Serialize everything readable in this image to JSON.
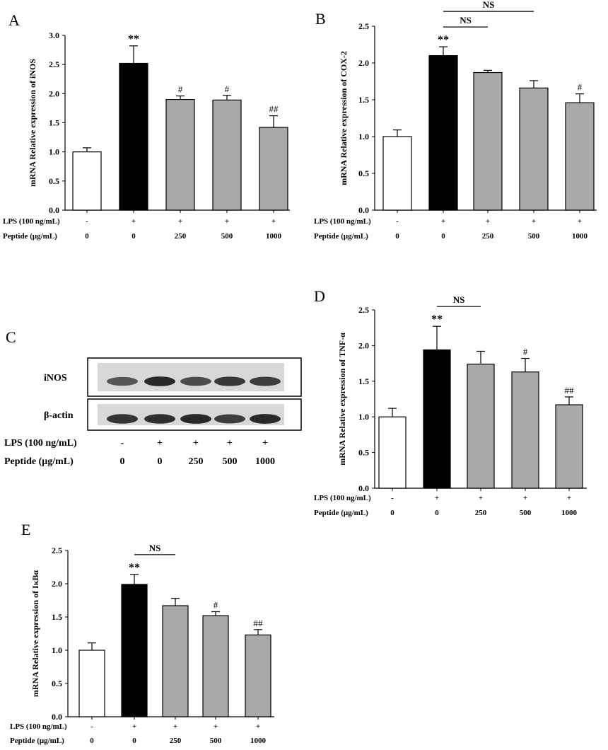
{
  "colors": {
    "control": "#ffffff",
    "lps": "#000000",
    "peptide": "#a9a9a9",
    "axis": "#000000"
  },
  "row_labels": {
    "lps": "LPS (100 ng/mL)",
    "peptide": "Peptide (μg/mL)"
  },
  "conditions": {
    "lps": [
      "-",
      "+",
      "+",
      "+",
      "+"
    ],
    "peptide": [
      "0",
      "0",
      "250",
      "500",
      "1000"
    ]
  },
  "chart_data": [
    {
      "panel": "A",
      "type": "bar",
      "ylabel": "mRNA Relative expression of iNOS",
      "ylim": [
        0,
        3.0
      ],
      "yticks": [
        "0.0",
        "0.5",
        "1.0",
        "1.5",
        "2.0",
        "2.5",
        "3.0"
      ],
      "values": [
        1.0,
        2.52,
        1.9,
        1.89,
        1.42
      ],
      "errors": [
        0.07,
        0.3,
        0.06,
        0.08,
        0.2
      ],
      "annotations": [
        "",
        "**",
        "#",
        "#",
        "##"
      ],
      "ns": []
    },
    {
      "panel": "B",
      "type": "bar",
      "ylabel": "mRNA Relative expression of COX-2",
      "ylim": [
        0,
        2.5
      ],
      "yticks": [
        "0.0",
        "0.5",
        "1.0",
        "1.5",
        "2.0",
        "2.5"
      ],
      "values": [
        1.0,
        2.1,
        1.87,
        1.66,
        1.46
      ],
      "errors": [
        0.09,
        0.12,
        0.03,
        0.1,
        0.12
      ],
      "annotations": [
        "",
        "**",
        "",
        "",
        "#"
      ],
      "ns": [
        {
          "from": 1,
          "to": 2,
          "label": "NS"
        },
        {
          "from": 1,
          "to": 3,
          "label": "NS"
        }
      ]
    },
    {
      "panel": "D",
      "type": "bar",
      "ylabel": "mRNA Relative expression of TNF-α",
      "ylim": [
        0,
        2.5
      ],
      "yticks": [
        "0.0",
        "0.5",
        "1.0",
        "1.5",
        "2.0",
        "2.5"
      ],
      "values": [
        1.0,
        1.94,
        1.74,
        1.63,
        1.17
      ],
      "errors": [
        0.12,
        0.33,
        0.18,
        0.19,
        0.11
      ],
      "annotations": [
        "",
        "**",
        "",
        "#",
        "##"
      ],
      "ns": [
        {
          "from": 1,
          "to": 2,
          "label": "NS"
        }
      ]
    },
    {
      "panel": "E",
      "type": "bar",
      "ylabel": "mRNA Relative expression of IκBα",
      "ylim": [
        0,
        2.5
      ],
      "yticks": [
        "0.0",
        "0.5",
        "1.0",
        "1.5",
        "2.0",
        "2.5"
      ],
      "values": [
        1.0,
        1.99,
        1.67,
        1.52,
        1.23
      ],
      "errors": [
        0.11,
        0.15,
        0.11,
        0.06,
        0.08
      ],
      "annotations": [
        "",
        "**",
        "",
        "#",
        "##"
      ],
      "ns": [
        {
          "from": 1,
          "to": 2,
          "label": "NS"
        }
      ]
    }
  ],
  "blot": {
    "panel": "C",
    "rows": [
      {
        "label": "iNOS",
        "intensity": [
          0.72,
          0.95,
          0.78,
          0.88,
          0.85
        ]
      },
      {
        "label": "β-actin",
        "intensity": [
          0.9,
          0.92,
          0.95,
          0.85,
          0.95
        ]
      }
    ]
  }
}
